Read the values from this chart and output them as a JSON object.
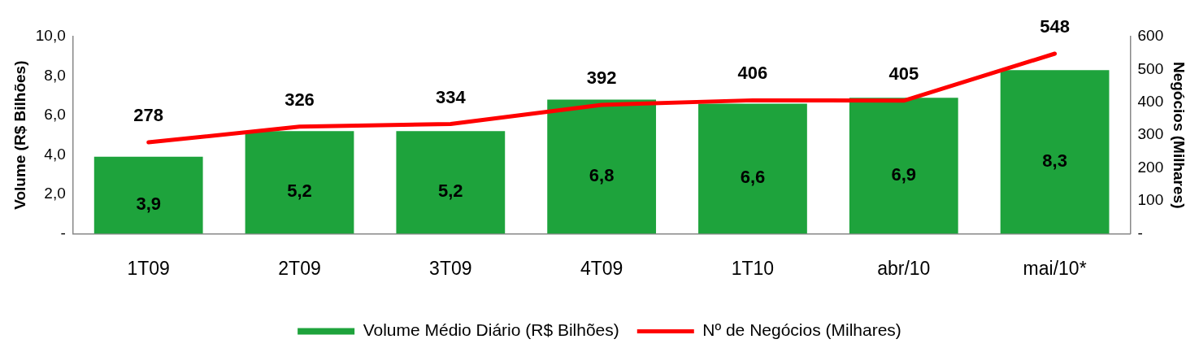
{
  "chart_data": {
    "type": "bar",
    "categories": [
      "1T09",
      "2T09",
      "3T09",
      "4T09",
      "1T10",
      "abr/10",
      "mai/10*"
    ],
    "series": [
      {
        "name": "Volume Médio Diário (R$ Bilhões)",
        "color": "#1ea33c",
        "values": [
          3.9,
          5.2,
          5.2,
          6.8,
          6.6,
          6.9,
          8.3
        ],
        "value_labels": [
          "3,9",
          "5,2",
          "5,2",
          "6,8",
          "6,6",
          "6,9",
          "8,3"
        ]
      },
      {
        "name": "Nº de Negócios (Milhares)",
        "type": "line",
        "axis": "y2",
        "color": "#ff0000",
        "values": [
          278,
          326,
          334,
          392,
          406,
          405,
          548
        ],
        "value_labels": [
          "278",
          "326",
          "334",
          "392",
          "406",
          "405",
          "548"
        ]
      }
    ],
    "ylabel": "Volume (R$ Bilhões)",
    "y2label": "Negócios (Milhares)",
    "ylim": [
      0,
      10
    ],
    "yticks": [
      {
        "value": 0,
        "label": "-"
      },
      {
        "value": 2,
        "label": "2,0"
      },
      {
        "value": 4,
        "label": "4,0"
      },
      {
        "value": 6,
        "label": "6,0"
      },
      {
        "value": 8,
        "label": "8,0"
      },
      {
        "value": 10,
        "label": "10,0"
      }
    ],
    "y2lim": [
      0,
      600
    ],
    "y2ticks": [
      {
        "value": 0,
        "label": "-"
      },
      100,
      200,
      300,
      400,
      500,
      600
    ],
    "grid": false,
    "legend": "bottom",
    "marker": "none",
    "line_style": "solid"
  }
}
